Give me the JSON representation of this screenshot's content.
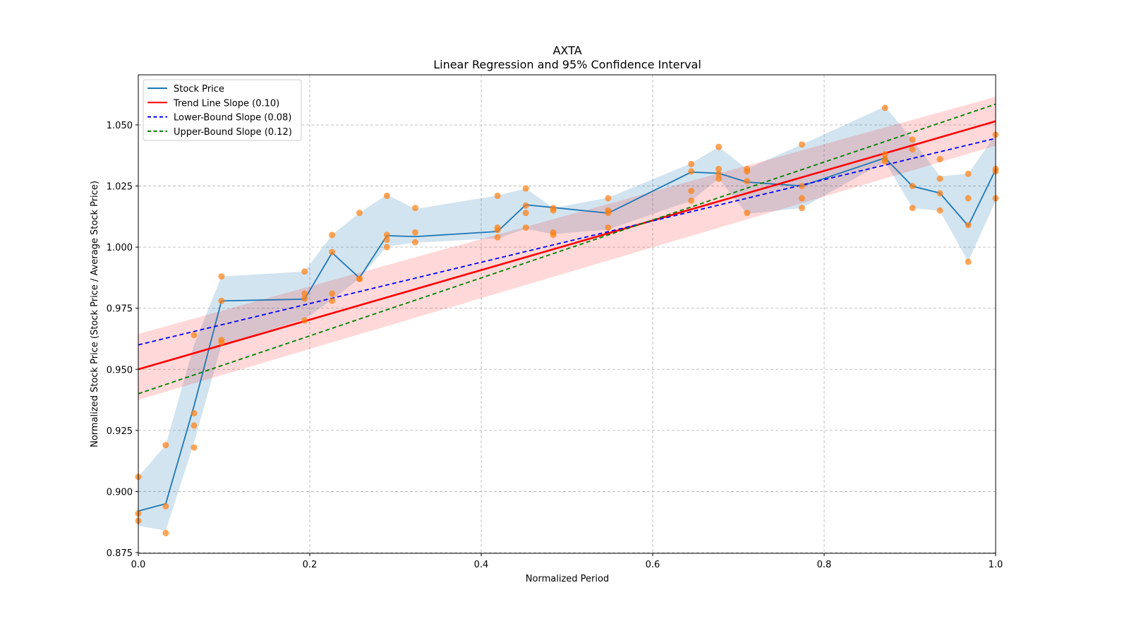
{
  "chart_data": {
    "type": "line",
    "title": "AXTA",
    "subtitle": "Linear Regression and 95% Confidence Interval",
    "xlabel": "Normalized Period",
    "ylabel": "Normalized Stock Price (Stock Price / Average Stock Price)",
    "xlim": [
      0,
      1
    ],
    "ylim": [
      0.875,
      1.07
    ],
    "xticks": [
      0.0,
      0.2,
      0.4,
      0.6,
      0.8,
      1.0
    ],
    "xtick_labels": [
      "0.0",
      "0.2",
      "0.4",
      "0.6",
      "0.8",
      "1.0"
    ],
    "yticks": [
      0.875,
      0.9,
      0.925,
      0.95,
      0.975,
      1.0,
      1.025,
      1.05
    ],
    "ytick_labels": [
      "0.875",
      "0.900",
      "0.925",
      "0.950",
      "0.975",
      "1.000",
      "1.025",
      "1.050"
    ],
    "grid": true,
    "legend_position": "top-left",
    "legend": [
      {
        "label": "Stock Price",
        "color": "#1f77b4",
        "style": "solid"
      },
      {
        "label": "Trend Line Slope (0.10)",
        "color": "#ff0000",
        "style": "solid"
      },
      {
        "label": "Lower-Bound Slope (0.08)",
        "color": "#0000ff",
        "style": "dashed"
      },
      {
        "label": "Upper-Bound Slope (0.12)",
        "color": "#008000",
        "style": "dashed"
      }
    ],
    "series": [
      {
        "name": "Stock Price",
        "color": "#1f77b4",
        "x": [
          0.0,
          0.032,
          0.065,
          0.097,
          0.194,
          0.226,
          0.258,
          0.29,
          0.323,
          0.419,
          0.452,
          0.484,
          0.548,
          0.645,
          0.677,
          0.71,
          0.774,
          0.871,
          0.903,
          0.935,
          0.968,
          1.0
        ],
        "y": [
          0.892,
          0.895,
          0.935,
          0.978,
          0.9787,
          0.9977,
          0.9874,
          1.0047,
          1.0043,
          1.0064,
          1.0173,
          1.0162,
          1.0139,
          1.0307,
          1.0302,
          1.0266,
          1.025,
          1.0365,
          1.0249,
          1.0221,
          1.0087,
          1.0317
        ],
        "band_lower": [
          0.886,
          0.884,
          0.92,
          0.96,
          0.9705,
          0.9785,
          0.9872,
          1.0003,
          1.0018,
          1.0036,
          1.0075,
          1.0053,
          1.0072,
          1.019,
          1.028,
          1.0136,
          1.016,
          1.035,
          1.016,
          1.0148,
          0.994,
          1.019
        ],
        "band_upper": [
          0.906,
          0.919,
          0.96,
          0.988,
          0.99,
          1.005,
          1.014,
          1.0214,
          1.0156,
          1.0211,
          1.024,
          1.016,
          1.0202,
          1.0343,
          1.041,
          1.032,
          1.042,
          1.0575,
          1.044,
          1.029,
          1.03,
          1.046
        ]
      },
      {
        "name": "Observations",
        "type": "scatter",
        "color": "#ff7f0e",
        "points": [
          [
            0.0,
            0.906
          ],
          [
            0.0,
            0.891
          ],
          [
            0.0,
            0.888
          ],
          [
            0.032,
            0.919
          ],
          [
            0.032,
            0.894
          ],
          [
            0.032,
            0.883
          ],
          [
            0.065,
            0.964
          ],
          [
            0.065,
            0.932
          ],
          [
            0.065,
            0.927
          ],
          [
            0.065,
            0.918
          ],
          [
            0.097,
            0.988
          ],
          [
            0.097,
            0.978
          ],
          [
            0.097,
            0.962
          ],
          [
            0.097,
            0.961
          ],
          [
            0.194,
            0.99
          ],
          [
            0.194,
            0.981
          ],
          [
            0.194,
            0.979
          ],
          [
            0.194,
            0.97
          ],
          [
            0.226,
            1.005
          ],
          [
            0.226,
            0.998
          ],
          [
            0.226,
            0.981
          ],
          [
            0.226,
            0.978
          ],
          [
            0.258,
            1.014
          ],
          [
            0.258,
            0.987
          ],
          [
            0.258,
            0.987
          ],
          [
            0.29,
            1.021
          ],
          [
            0.29,
            1.005
          ],
          [
            0.29,
            1.003
          ],
          [
            0.29,
            1.0
          ],
          [
            0.323,
            1.016
          ],
          [
            0.323,
            1.006
          ],
          [
            0.323,
            1.002
          ],
          [
            0.419,
            1.021
          ],
          [
            0.419,
            1.008
          ],
          [
            0.419,
            1.007
          ],
          [
            0.419,
            1.004
          ],
          [
            0.452,
            1.024
          ],
          [
            0.452,
            1.017
          ],
          [
            0.452,
            1.014
          ],
          [
            0.452,
            1.008
          ],
          [
            0.484,
            1.016
          ],
          [
            0.484,
            1.015
          ],
          [
            0.484,
            1.006
          ],
          [
            0.484,
            1.005
          ],
          [
            0.548,
            1.02
          ],
          [
            0.548,
            1.015
          ],
          [
            0.548,
            1.014
          ],
          [
            0.548,
            1.008
          ],
          [
            0.645,
            1.034
          ],
          [
            0.645,
            1.031
          ],
          [
            0.645,
            1.023
          ],
          [
            0.645,
            1.019
          ],
          [
            0.677,
            1.041
          ],
          [
            0.677,
            1.032
          ],
          [
            0.677,
            1.03
          ],
          [
            0.677,
            1.028
          ],
          [
            0.71,
            1.032
          ],
          [
            0.71,
            1.031
          ],
          [
            0.71,
            1.027
          ],
          [
            0.71,
            1.014
          ],
          [
            0.774,
            1.042
          ],
          [
            0.774,
            1.025
          ],
          [
            0.774,
            1.02
          ],
          [
            0.774,
            1.016
          ],
          [
            0.871,
            1.057
          ],
          [
            0.871,
            1.038
          ],
          [
            0.871,
            1.036
          ],
          [
            0.871,
            1.035
          ],
          [
            0.903,
            1.044
          ],
          [
            0.903,
            1.04
          ],
          [
            0.903,
            1.025
          ],
          [
            0.903,
            1.016
          ],
          [
            0.935,
            1.036
          ],
          [
            0.935,
            1.028
          ],
          [
            0.935,
            1.022
          ],
          [
            0.935,
            1.015
          ],
          [
            0.968,
            1.03
          ],
          [
            0.968,
            1.02
          ],
          [
            0.968,
            1.009
          ],
          [
            0.968,
            0.994
          ],
          [
            1.0,
            1.046
          ],
          [
            1.0,
            1.032
          ],
          [
            1.0,
            1.031
          ],
          [
            1.0,
            1.02
          ]
        ]
      },
      {
        "name": "Trend Line Slope (0.10)",
        "color": "#ff0000",
        "x": [
          0,
          1
        ],
        "y": [
          0.95,
          1.0515
        ],
        "ci_lower": [
          0.9375,
          1.0415
        ],
        "ci_upper": [
          0.9645,
          1.0615
        ]
      },
      {
        "name": "Lower-Bound Slope (0.08)",
        "color": "#0000ff",
        "x": [
          0,
          1
        ],
        "y": [
          0.96,
          1.0445
        ]
      },
      {
        "name": "Upper-Bound Slope (0.12)",
        "color": "#008000",
        "x": [
          0,
          1
        ],
        "y": [
          0.94,
          1.0585
        ]
      }
    ]
  }
}
